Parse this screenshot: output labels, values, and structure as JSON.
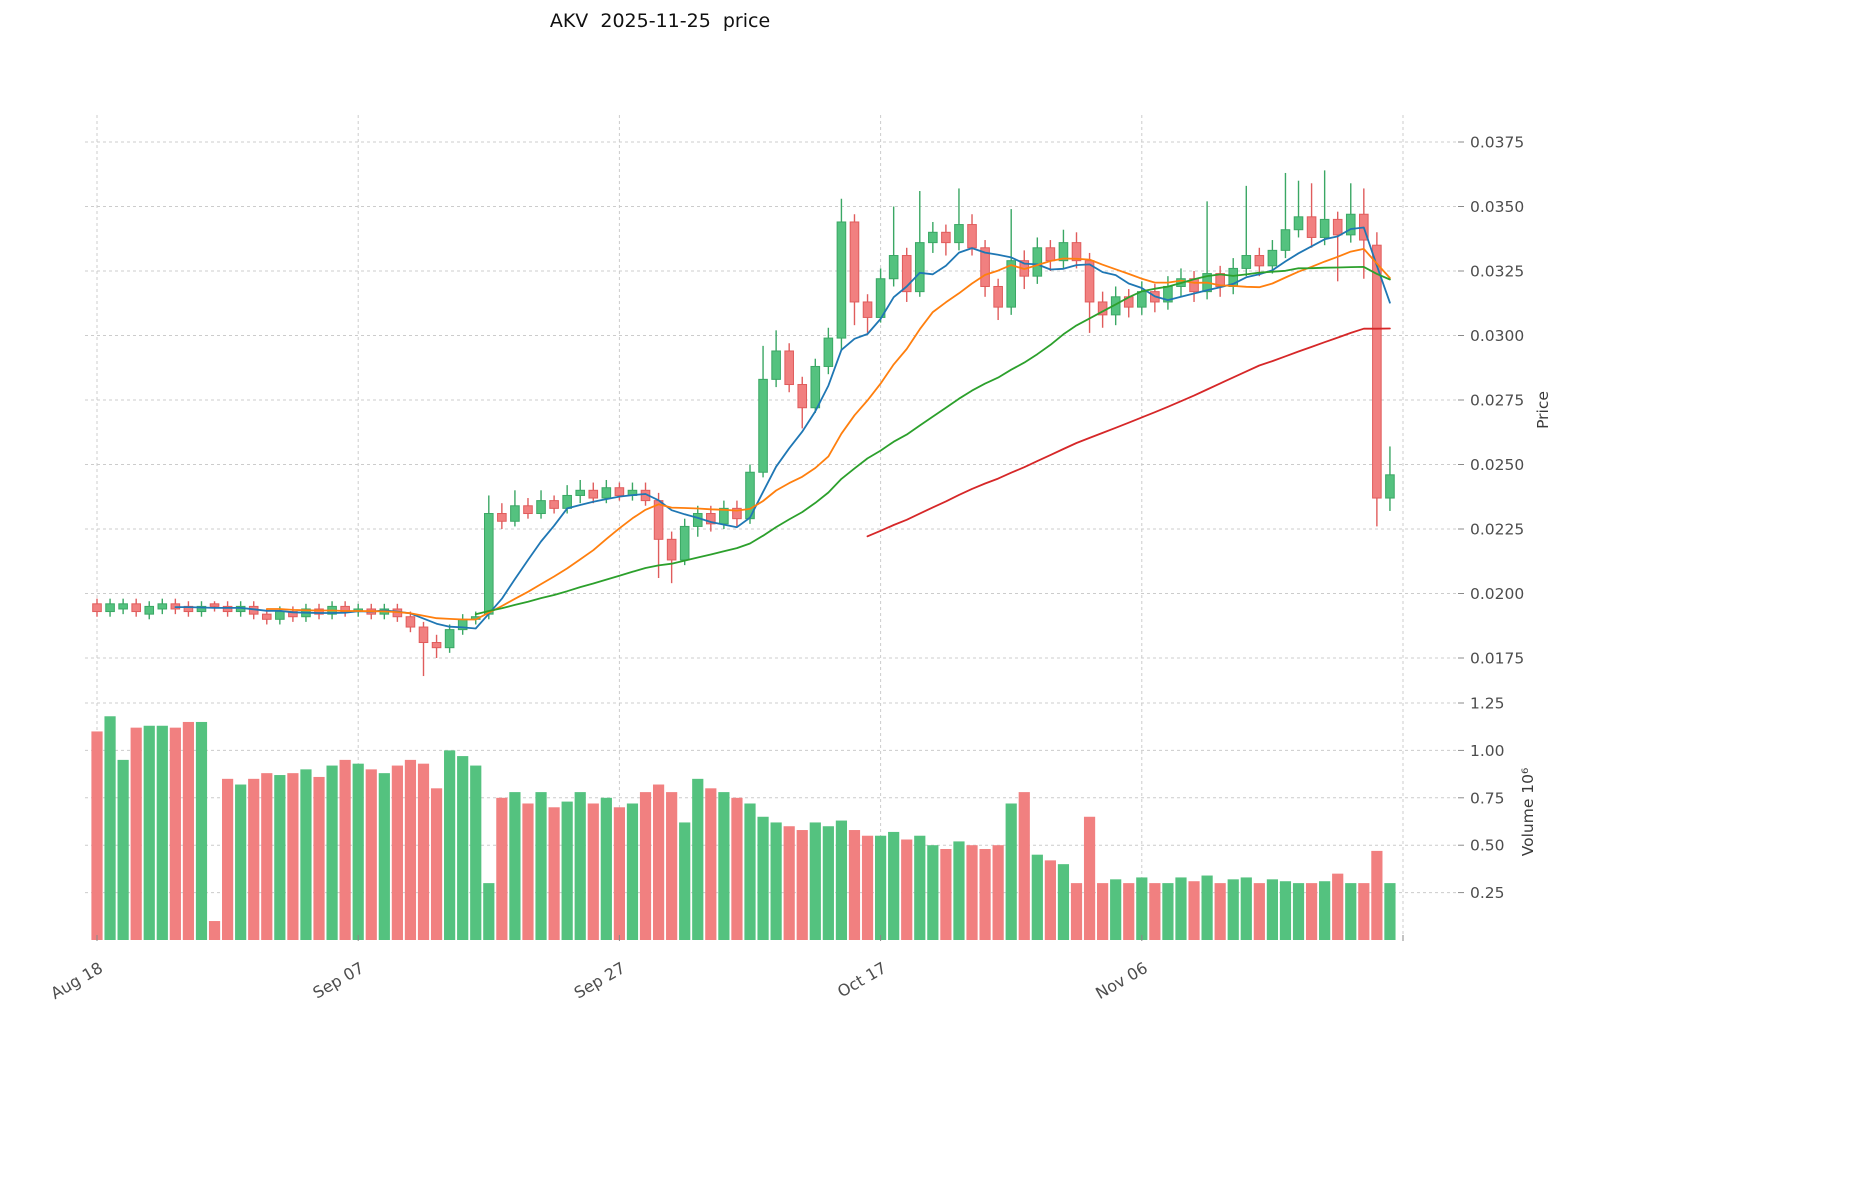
{
  "chart_data": {
    "type": "candlestick",
    "title": "AKV  2025-11-25  price",
    "x_axis": {
      "tick_labels": [
        "Aug 18",
        "Sep 07",
        "Sep 27",
        "Oct 17",
        "Nov 06"
      ],
      "tick_indices": [
        0,
        20,
        40,
        60,
        80
      ],
      "right_grid_index": 100
    },
    "price_axis": {
      "label": "Price",
      "ticks": [
        0.0175,
        0.02,
        0.0225,
        0.025,
        0.0275,
        0.03,
        0.0325,
        0.035,
        0.0375
      ],
      "tick_labels": [
        "0.0175",
        "0.0200",
        "0.0225",
        "0.0250",
        "0.0275",
        "0.0300",
        "0.0325",
        "0.0350",
        "0.0375"
      ]
    },
    "volume_axis": {
      "label": "Volume  10⁶",
      "ticks": [
        0.25,
        0.5,
        0.75,
        1.0,
        1.25
      ],
      "tick_labels": [
        "0.25",
        "0.50",
        "0.75",
        "1.00",
        "1.25"
      ]
    },
    "moving_averages": [
      {
        "name": "sma7",
        "window": 7,
        "color": "#1f77b4"
      },
      {
        "name": "sma14",
        "window": 14,
        "color": "#ff7f0e"
      },
      {
        "name": "sma30",
        "window": 30,
        "color": "#2ca02c"
      },
      {
        "name": "sma60",
        "window": 60,
        "color": "#d62728"
      }
    ],
    "colors": {
      "up": "#54c27f",
      "up_edge": "#3aa764",
      "down": "#f18080",
      "down_edge": "#e05c5c",
      "grid": "#cccccc",
      "tick_text": "#4d4d4d",
      "title_text": "#111111",
      "background": "#ffffff"
    },
    "candles": {
      "open": [
        0.0196,
        0.0193,
        0.0194,
        0.0196,
        0.0192,
        0.0194,
        0.0196,
        0.0195,
        0.0193,
        0.0196,
        0.0195,
        0.0193,
        0.0195,
        0.0192,
        0.019,
        0.0193,
        0.0191,
        0.0194,
        0.0192,
        0.0195,
        0.0193,
        0.0194,
        0.0192,
        0.0194,
        0.0191,
        0.0187,
        0.0181,
        0.0179,
        0.0186,
        0.019,
        0.0192,
        0.0231,
        0.0228,
        0.0234,
        0.0231,
        0.0236,
        0.0233,
        0.0238,
        0.024,
        0.0237,
        0.0241,
        0.0238,
        0.024,
        0.0236,
        0.0221,
        0.0213,
        0.0226,
        0.0231,
        0.0227,
        0.0233,
        0.0229,
        0.0247,
        0.0283,
        0.0294,
        0.0281,
        0.0272,
        0.0288,
        0.0299,
        0.0344,
        0.0313,
        0.0307,
        0.0322,
        0.0331,
        0.0317,
        0.0336,
        0.034,
        0.0336,
        0.0343,
        0.0334,
        0.0319,
        0.0311,
        0.0329,
        0.0323,
        0.0334,
        0.0329,
        0.0336,
        0.0329,
        0.0313,
        0.0308,
        0.0315,
        0.0311,
        0.0317,
        0.0313,
        0.0319,
        0.0322,
        0.0317,
        0.0324,
        0.0319,
        0.0326,
        0.0331,
        0.0327,
        0.0333,
        0.0341,
        0.0346,
        0.0338,
        0.0345,
        0.0339,
        0.0347,
        0.0335,
        0.0237
      ],
      "high": [
        0.0198,
        0.0198,
        0.0198,
        0.0198,
        0.0197,
        0.0198,
        0.0198,
        0.0197,
        0.0197,
        0.0197,
        0.0197,
        0.0197,
        0.0197,
        0.0194,
        0.0195,
        0.0195,
        0.0196,
        0.0196,
        0.0197,
        0.0197,
        0.0196,
        0.0196,
        0.0196,
        0.0196,
        0.0193,
        0.0189,
        0.0184,
        0.0188,
        0.0192,
        0.0193,
        0.0238,
        0.0235,
        0.024,
        0.0237,
        0.024,
        0.0238,
        0.0242,
        0.0244,
        0.0243,
        0.0244,
        0.0243,
        0.0243,
        0.0243,
        0.0239,
        0.0224,
        0.0229,
        0.0234,
        0.0234,
        0.0236,
        0.0236,
        0.025,
        0.0296,
        0.0302,
        0.0297,
        0.0284,
        0.0291,
        0.0303,
        0.0353,
        0.0347,
        0.0316,
        0.0326,
        0.035,
        0.0334,
        0.0356,
        0.0344,
        0.0343,
        0.0357,
        0.0347,
        0.0337,
        0.0322,
        0.0349,
        0.0333,
        0.0338,
        0.0337,
        0.0341,
        0.034,
        0.0332,
        0.0317,
        0.0319,
        0.0318,
        0.0321,
        0.032,
        0.0323,
        0.0326,
        0.0325,
        0.0352,
        0.0327,
        0.033,
        0.0358,
        0.0334,
        0.0337,
        0.0363,
        0.036,
        0.0359,
        0.0364,
        0.0348,
        0.0359,
        0.0357,
        0.034,
        0.0257
      ],
      "low": [
        0.0191,
        0.0191,
        0.0192,
        0.0191,
        0.019,
        0.0192,
        0.0192,
        0.0191,
        0.0191,
        0.0193,
        0.0191,
        0.0191,
        0.019,
        0.0188,
        0.0188,
        0.0189,
        0.0189,
        0.019,
        0.019,
        0.0191,
        0.0191,
        0.019,
        0.019,
        0.0189,
        0.0185,
        0.0168,
        0.0175,
        0.0177,
        0.0184,
        0.0188,
        0.019,
        0.0225,
        0.0226,
        0.0229,
        0.0229,
        0.0231,
        0.0231,
        0.0235,
        0.0235,
        0.0235,
        0.0236,
        0.0236,
        0.0234,
        0.0206,
        0.0204,
        0.0211,
        0.0222,
        0.0224,
        0.0225,
        0.0226,
        0.0227,
        0.0245,
        0.028,
        0.0278,
        0.0264,
        0.027,
        0.0285,
        0.0294,
        0.0304,
        0.0301,
        0.0305,
        0.0319,
        0.0313,
        0.0315,
        0.0332,
        0.0331,
        0.0333,
        0.0331,
        0.0315,
        0.0306,
        0.0308,
        0.0318,
        0.032,
        0.0325,
        0.0326,
        0.0326,
        0.0301,
        0.0303,
        0.0304,
        0.0307,
        0.0308,
        0.0309,
        0.031,
        0.0315,
        0.0313,
        0.0314,
        0.0315,
        0.0316,
        0.0323,
        0.0323,
        0.0324,
        0.033,
        0.0338,
        0.0334,
        0.0335,
        0.0321,
        0.0336,
        0.0322,
        0.0226,
        0.0232
      ],
      "close": [
        0.0193,
        0.0196,
        0.0196,
        0.0193,
        0.0195,
        0.0196,
        0.0194,
        0.0193,
        0.0195,
        0.0195,
        0.0193,
        0.0195,
        0.0192,
        0.019,
        0.0193,
        0.0191,
        0.0194,
        0.0192,
        0.0195,
        0.0193,
        0.0194,
        0.0192,
        0.0194,
        0.0191,
        0.0187,
        0.0181,
        0.0179,
        0.0186,
        0.019,
        0.0191,
        0.0231,
        0.0228,
        0.0234,
        0.0231,
        0.0236,
        0.0233,
        0.0238,
        0.024,
        0.0237,
        0.0241,
        0.0238,
        0.024,
        0.0236,
        0.0221,
        0.0213,
        0.0226,
        0.0231,
        0.0227,
        0.0233,
        0.0229,
        0.0247,
        0.0283,
        0.0294,
        0.0281,
        0.0272,
        0.0288,
        0.0299,
        0.0344,
        0.0313,
        0.0307,
        0.0322,
        0.0331,
        0.0317,
        0.0336,
        0.034,
        0.0336,
        0.0343,
        0.0334,
        0.0319,
        0.0311,
        0.0329,
        0.0323,
        0.0334,
        0.0329,
        0.0336,
        0.0329,
        0.0313,
        0.0308,
        0.0315,
        0.0311,
        0.0317,
        0.0313,
        0.0319,
        0.0322,
        0.0317,
        0.0324,
        0.0319,
        0.0326,
        0.0331,
        0.0327,
        0.0333,
        0.0341,
        0.0346,
        0.0338,
        0.0345,
        0.0339,
        0.0347,
        0.0337,
        0.0237,
        0.0246
      ],
      "volume_millions": [
        1.1,
        1.18,
        0.95,
        1.12,
        1.13,
        1.13,
        1.12,
        1.15,
        1.15,
        0.1,
        0.85,
        0.82,
        0.85,
        0.88,
        0.87,
        0.88,
        0.9,
        0.86,
        0.92,
        0.95,
        0.93,
        0.9,
        0.88,
        0.92,
        0.95,
        0.93,
        0.8,
        1.0,
        0.97,
        0.92,
        0.3,
        0.75,
        0.78,
        0.72,
        0.78,
        0.7,
        0.73,
        0.78,
        0.72,
        0.75,
        0.7,
        0.72,
        0.78,
        0.82,
        0.78,
        0.62,
        0.85,
        0.8,
        0.78,
        0.75,
        0.72,
        0.65,
        0.62,
        0.6,
        0.58,
        0.62,
        0.6,
        0.63,
        0.58,
        0.55,
        0.55,
        0.57,
        0.53,
        0.55,
        0.5,
        0.48,
        0.52,
        0.5,
        0.48,
        0.5,
        0.72,
        0.78,
        0.45,
        0.42,
        0.4,
        0.3,
        0.65,
        0.3,
        0.32,
        0.3,
        0.33,
        0.3,
        0.3,
        0.33,
        0.31,
        0.34,
        0.3,
        0.32,
        0.33,
        0.3,
        0.32,
        0.31,
        0.3,
        0.3,
        0.31,
        0.35,
        0.3,
        0.3,
        0.47,
        0.3
      ]
    }
  }
}
